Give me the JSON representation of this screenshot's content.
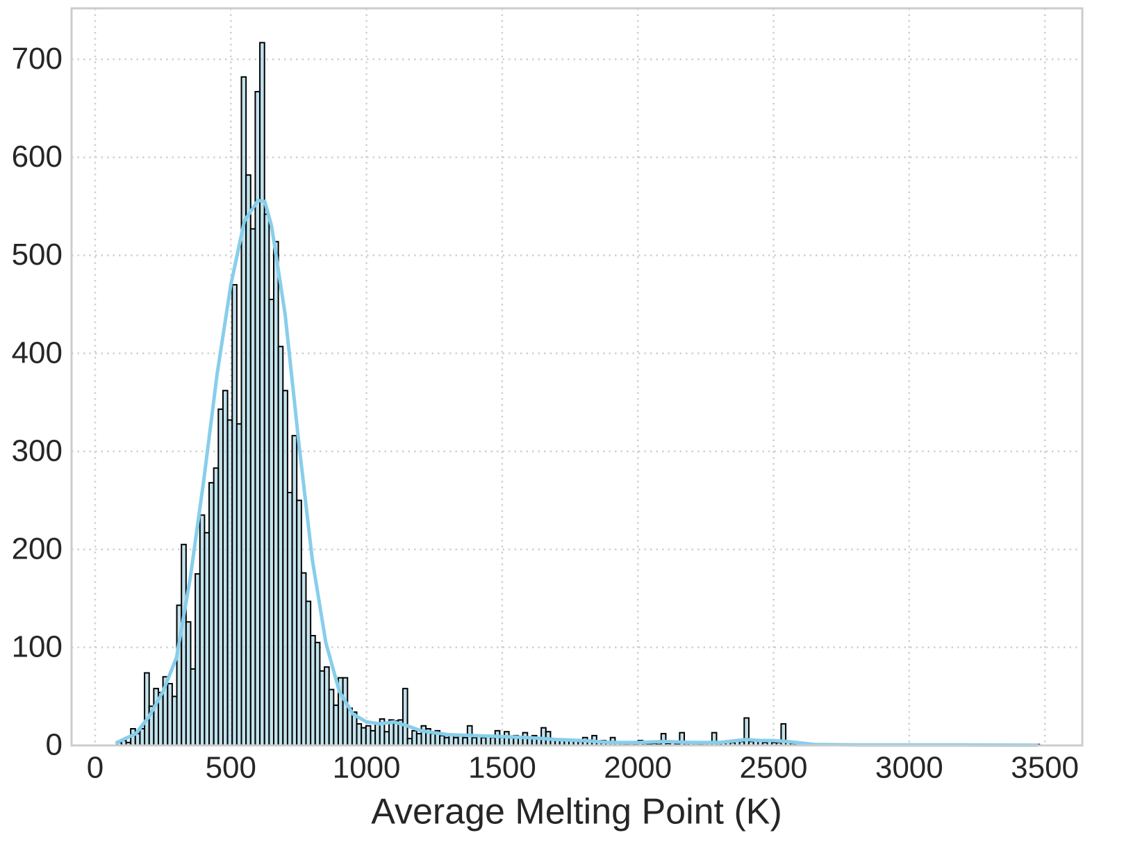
{
  "chart_data": {
    "type": "histogram",
    "xlabel": "Average Melting Point (K)",
    "xlim": [
      -87,
      3638
    ],
    "ylim": [
      0,
      752
    ],
    "xticks": [
      0,
      500,
      1000,
      1500,
      2000,
      2500,
      3000,
      3500
    ],
    "yticks": [
      0,
      100,
      200,
      300,
      400,
      500,
      600,
      700
    ],
    "grid": true,
    "color": "#add8e6",
    "edgecolor": "#000000",
    "bins": [
      80,
      97,
      114,
      131,
      148,
      165,
      182,
      199,
      216,
      233,
      250,
      267,
      284,
      301,
      318,
      335,
      352,
      369,
      386,
      403,
      420,
      437,
      454,
      471,
      488,
      505,
      522,
      539,
      556,
      573,
      590,
      607,
      624,
      641,
      658,
      675,
      692,
      709,
      726,
      743,
      760,
      777,
      794,
      811,
      828,
      845,
      862,
      879,
      896,
      913,
      930,
      947,
      964,
      981,
      998,
      1015,
      1032,
      1049,
      1066,
      1083,
      1100,
      1117,
      1134,
      1151,
      1168,
      1185,
      1202,
      1219,
      1236,
      1253,
      1270,
      1287,
      1304,
      1321,
      1338,
      1355,
      1372,
      1389,
      1406,
      1423,
      1440,
      1457,
      1474,
      1491,
      1508,
      1525,
      1542,
      1559,
      1576,
      1593,
      1610,
      1627,
      1644,
      1661,
      1678,
      1695,
      1712,
      1729,
      1746,
      1763,
      1780,
      1797,
      1814,
      1831,
      1848,
      1865,
      1882,
      1899,
      1916,
      1933,
      1950,
      1967,
      1984,
      2001,
      2018,
      2035,
      2052,
      2069,
      2086,
      2103,
      2120,
      2137,
      2154,
      2171,
      2188,
      2205,
      2222,
      2239,
      2256,
      2273,
      2290,
      2307,
      2324,
      2341,
      2358,
      2375,
      2392,
      2409,
      2426,
      2443,
      2460,
      2477,
      2494,
      2511,
      2528,
      2545,
      2562,
      2579,
      2596,
      2613,
      2630,
      2647,
      2664,
      2681,
      2698,
      2715,
      2732,
      2749,
      2766,
      2783,
      2800,
      2817,
      2834,
      2851,
      2868,
      2885,
      2902,
      2919,
      2936,
      2953,
      2970,
      2987,
      3004,
      3021,
      3038,
      3055,
      3072,
      3089,
      3106,
      3123,
      3140,
      3157,
      3174,
      3191,
      3208,
      3225,
      3242,
      3259,
      3276,
      3293,
      3310,
      3327,
      3344,
      3361,
      3378,
      3395,
      3412,
      3429,
      3446,
      3463,
      3480
    ],
    "values": [
      3,
      5,
      3,
      17,
      12,
      17,
      74,
      40,
      58,
      54,
      70,
      63,
      50,
      143,
      205,
      126,
      78,
      175,
      235,
      217,
      268,
      283,
      343,
      362,
      332,
      470,
      328,
      682,
      582,
      527,
      667,
      717,
      542,
      455,
      514,
      407,
      362,
      258,
      316,
      250,
      176,
      147,
      112,
      105,
      76,
      80,
      57,
      41,
      69,
      69,
      38,
      34,
      22,
      18,
      20,
      15,
      22,
      27,
      14,
      26,
      25,
      26,
      58,
      7,
      15,
      12,
      20,
      17,
      12,
      15,
      10,
      8,
      10,
      8,
      10,
      8,
      20,
      8,
      10,
      8,
      10,
      8,
      15,
      8,
      14,
      8,
      10,
      8,
      13,
      8,
      10,
      8,
      18,
      14,
      6,
      5,
      6,
      5,
      6,
      5,
      4,
      8,
      5,
      10,
      4,
      5,
      4,
      8,
      3,
      2,
      1,
      2,
      1,
      5,
      2,
      1,
      2,
      1,
      12,
      2,
      3,
      1,
      13,
      2,
      3,
      2,
      1,
      2,
      3,
      13,
      2,
      3,
      4,
      3,
      5,
      4,
      28,
      4,
      6,
      5,
      3,
      4,
      3,
      3,
      22,
      4,
      2,
      1,
      1,
      1,
      0,
      1,
      0,
      1,
      0,
      1,
      0,
      1,
      1,
      0,
      1,
      0,
      1,
      0,
      1,
      0,
      0,
      1,
      0,
      1,
      0,
      1,
      0,
      1,
      0,
      0,
      1,
      0,
      1,
      0,
      1,
      0,
      0,
      1,
      0,
      1,
      0,
      0,
      1,
      0,
      1,
      0,
      0,
      1,
      0,
      0,
      1,
      0,
      1,
      1
    ],
    "kde": {
      "color": "#87ceeb",
      "x": [
        80,
        150,
        200,
        250,
        300,
        350,
        400,
        450,
        500,
        550,
        600,
        625,
        650,
        700,
        750,
        800,
        850,
        900,
        950,
        1000,
        1050,
        1100,
        1150,
        1200,
        1300,
        1400,
        1500,
        1600,
        1700,
        1800,
        1900,
        2000,
        2100,
        2200,
        2300,
        2400,
        2450,
        2500,
        2550,
        2650,
        2800,
        3000,
        3200,
        3470
      ],
      "y": [
        3,
        12,
        30,
        55,
        90,
        170,
        270,
        380,
        470,
        535,
        556,
        555,
        530,
        440,
        310,
        190,
        105,
        55,
        32,
        24,
        22,
        24,
        20,
        15,
        11,
        10,
        9,
        8,
        6,
        5,
        3,
        3,
        4,
        3,
        3,
        6,
        5,
        5,
        4,
        1,
        0.5,
        0.5,
        0.5,
        0.3
      ]
    }
  }
}
